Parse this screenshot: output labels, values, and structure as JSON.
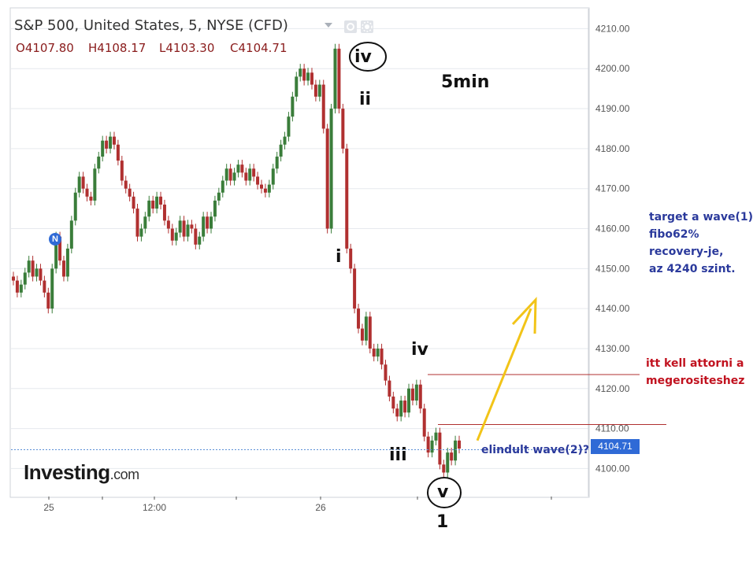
{
  "header": {
    "title": "S&P 500, United States, 5, NYSE (CFD)",
    "ohlc": [
      {
        "key": "O",
        "value": "4107.80"
      },
      {
        "key": "H",
        "value": "4108.17"
      },
      {
        "key": "L",
        "value": "4103.30"
      },
      {
        "key": "C",
        "value": "4104.71"
      }
    ]
  },
  "colors": {
    "up": "#3a7d3a",
    "down": "#b03030",
    "grid": "#e6e9ee",
    "axis": "#555555",
    "priceTag": "#2f6ad6",
    "annotationBlue": "#2b3a9c",
    "annotationRed": "#c1121f",
    "arrow": "#f2c418",
    "level": "#b03030"
  },
  "icons": [
    "dropdown-caret-icon",
    "settings-gear-icon",
    "cog-icon",
    "news-marker-icon"
  ],
  "logo": {
    "main": "Investing",
    "suffix": ".com"
  },
  "current_price": "4104.71",
  "annotations": {
    "timeframe": "5min",
    "wave_labels": [
      "iv",
      "ii",
      "i",
      "iv",
      "iii",
      "v",
      "1"
    ],
    "target_note": [
      "target a wave(1)",
      "fibo62%",
      "recovery-je,",
      "az 4240 szint."
    ],
    "confirm_note": [
      "itt kell attorni a",
      "megerositeshez"
    ],
    "start_note": "elindult wave(2)?"
  },
  "chart_data": {
    "type": "candlestick",
    "title": "S&P 500, United States, 5, NYSE (CFD)",
    "ylim": [
      4093,
      4215
    ],
    "y_ticks": [
      "4210.00",
      "4200.00",
      "4190.00",
      "4180.00",
      "4170.00",
      "4160.00",
      "4150.00",
      "4140.00",
      "4130.00",
      "4120.00",
      "4110.00",
      "4100.00"
    ],
    "x_ticks": [
      "25",
      "12:00",
      "26"
    ],
    "grid": true,
    "levels": [
      4123.5,
      4111.0
    ],
    "target_level": 4240,
    "closes": [
      4147,
      4144,
      4146,
      4149,
      4152,
      4148,
      4150,
      4147,
      4144,
      4140,
      4150,
      4158,
      4152,
      4148,
      4155,
      4162,
      4169,
      4173,
      4170,
      4168,
      4167,
      4175,
      4178,
      4182,
      4180,
      4183,
      4181,
      4177,
      4172,
      4170,
      4168,
      4165,
      4158,
      4160,
      4163,
      4167,
      4165,
      4168,
      4166,
      4162,
      4160,
      4157,
      4159,
      4162,
      4158,
      4161,
      4160,
      4156,
      4158,
      4163,
      4160,
      4163,
      4167,
      4169,
      4172,
      4175,
      4172,
      4174,
      4176,
      4174,
      4172,
      4175,
      4173,
      4171,
      4170,
      4169,
      4171,
      4175,
      4178,
      4181,
      4183,
      4188,
      4193,
      4198,
      4200,
      4197,
      4199,
      4196,
      4193,
      4196,
      4185,
      4160,
      4190,
      4205,
      4190,
      4180,
      4155,
      4150,
      4140,
      4135,
      4132,
      4138,
      4130,
      4128,
      4130,
      4126,
      4122,
      4118,
      4115,
      4113,
      4117,
      4114,
      4120,
      4117,
      4121,
      4115,
      4108,
      4104,
      4107,
      4109,
      4101,
      4099,
      4104,
      4102,
      4107,
      4105
    ]
  }
}
